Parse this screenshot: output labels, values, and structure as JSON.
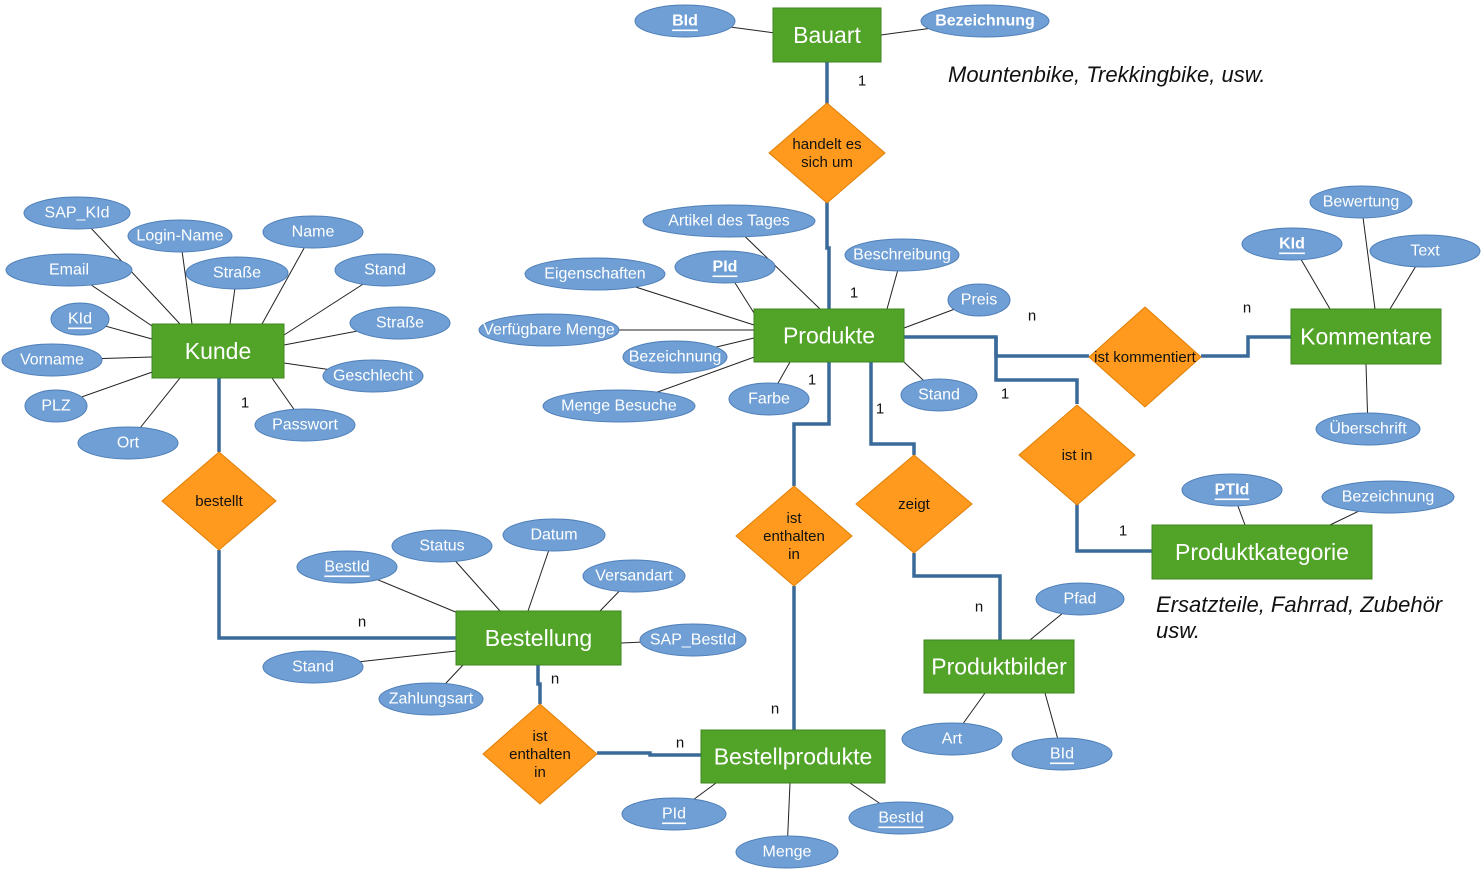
{
  "entities": [
    {
      "id": "bauart",
      "label": "Bauart"
    },
    {
      "id": "kunde",
      "label": "Kunde"
    },
    {
      "id": "produkte",
      "label": "Produkte"
    },
    {
      "id": "kommentare",
      "label": "Kommentare"
    },
    {
      "id": "produktkategorie",
      "label": "Produktkategorie"
    },
    {
      "id": "bestellung",
      "label": "Bestellung"
    },
    {
      "id": "produktbilder",
      "label": "Produktbilder"
    },
    {
      "id": "bestellprodukte",
      "label": "Bestellprodukte"
    }
  ],
  "relationships": [
    {
      "id": "handelt",
      "label": "handelt es sich um"
    },
    {
      "id": "bestellt",
      "label": "bestellt"
    },
    {
      "id": "kommentiert",
      "label": "ist kommentiert"
    },
    {
      "id": "ist-in",
      "label": "ist in"
    },
    {
      "id": "zeigt",
      "label": "zeigt"
    },
    {
      "id": "enthalten-produkte",
      "label": "ist enthalten in"
    },
    {
      "id": "enthalten-bestellung",
      "label": "ist enthalten in"
    }
  ],
  "attributes": [
    {
      "entity": "bauart",
      "label": "BId",
      "key": true,
      "bold": true
    },
    {
      "entity": "bauart",
      "label": "Bezeichnung",
      "key": false,
      "bold": true
    },
    {
      "entity": "kunde",
      "label": "SAP_KId",
      "key": false
    },
    {
      "entity": "kunde",
      "label": "Login-Name",
      "key": false
    },
    {
      "entity": "kunde",
      "label": "Name",
      "key": false
    },
    {
      "entity": "kunde",
      "label": "Email",
      "key": false
    },
    {
      "entity": "kunde",
      "label": "Straße",
      "key": false
    },
    {
      "entity": "kunde",
      "label": "Stand",
      "key": false
    },
    {
      "entity": "kunde",
      "label": "KId",
      "key": true
    },
    {
      "entity": "kunde",
      "label": "Straße",
      "key": false
    },
    {
      "entity": "kunde",
      "label": "Vorname",
      "key": false
    },
    {
      "entity": "kunde",
      "label": "Geschlecht",
      "key": false
    },
    {
      "entity": "kunde",
      "label": "PLZ",
      "key": false
    },
    {
      "entity": "kunde",
      "label": "Passwort",
      "key": false
    },
    {
      "entity": "kunde",
      "label": "Ort",
      "key": false
    },
    {
      "entity": "produkte",
      "label": "Artikel des Tages",
      "key": false
    },
    {
      "entity": "produkte",
      "label": "Beschreibung",
      "key": false
    },
    {
      "entity": "produkte",
      "label": "Eigenschaften",
      "key": false
    },
    {
      "entity": "produkte",
      "label": "PId",
      "key": true,
      "bold": true
    },
    {
      "entity": "produkte",
      "label": "Preis",
      "key": false
    },
    {
      "entity": "produkte",
      "label": "Verfügbare Menge",
      "key": false
    },
    {
      "entity": "produkte",
      "label": "Bezeichnung",
      "key": false
    },
    {
      "entity": "produkte",
      "label": "Stand",
      "key": false
    },
    {
      "entity": "produkte",
      "label": "Farbe",
      "key": false
    },
    {
      "entity": "produkte",
      "label": "Menge Besuche",
      "key": false
    },
    {
      "entity": "kommentare",
      "label": "Bewertung",
      "key": false
    },
    {
      "entity": "kommentare",
      "label": "KId",
      "key": true,
      "bold": true
    },
    {
      "entity": "kommentare",
      "label": "Text",
      "key": false
    },
    {
      "entity": "kommentare",
      "label": "Überschrift",
      "key": false
    },
    {
      "entity": "produktkategorie",
      "label": "PTId",
      "key": true,
      "bold": true
    },
    {
      "entity": "produktkategorie",
      "label": "Bezeichnung",
      "key": false
    },
    {
      "entity": "bestellung",
      "label": "Status",
      "key": false
    },
    {
      "entity": "bestellung",
      "label": "Datum",
      "key": false
    },
    {
      "entity": "bestellung",
      "label": "BestId",
      "key": true
    },
    {
      "entity": "bestellung",
      "label": "Versandart",
      "key": false
    },
    {
      "entity": "bestellung",
      "label": "SAP_BestId",
      "key": false
    },
    {
      "entity": "bestellung",
      "label": "Stand",
      "key": false
    },
    {
      "entity": "bestellung",
      "label": "Zahlungsart",
      "key": false
    },
    {
      "entity": "produktbilder",
      "label": "Pfad",
      "key": false
    },
    {
      "entity": "produktbilder",
      "label": "Art",
      "key": false
    },
    {
      "entity": "produktbilder",
      "label": "BId",
      "key": true
    },
    {
      "entity": "bestellprodukte",
      "label": "PId",
      "key": true
    },
    {
      "entity": "bestellprodukte",
      "label": "BestId",
      "key": true
    },
    {
      "entity": "bestellprodukte",
      "label": "Menge",
      "key": false
    }
  ],
  "cardinalities": [
    "1",
    "1",
    "n",
    "1",
    "n",
    "n",
    "1",
    "1",
    "1",
    "n",
    "1",
    "n",
    "n",
    "n",
    "1",
    "1"
  ],
  "notes": {
    "bauart": "Mountenbike, Trekkingbike, usw.",
    "produktkategorie_line1": "Ersatzteile, Fahrrad, Zubehör",
    "produktkategorie_line2": "usw."
  },
  "colors": {
    "entity": "#52a429",
    "attribute": "#6f9fd4",
    "relationship": "#ff9a1e",
    "connector": "#3a6a9a"
  }
}
